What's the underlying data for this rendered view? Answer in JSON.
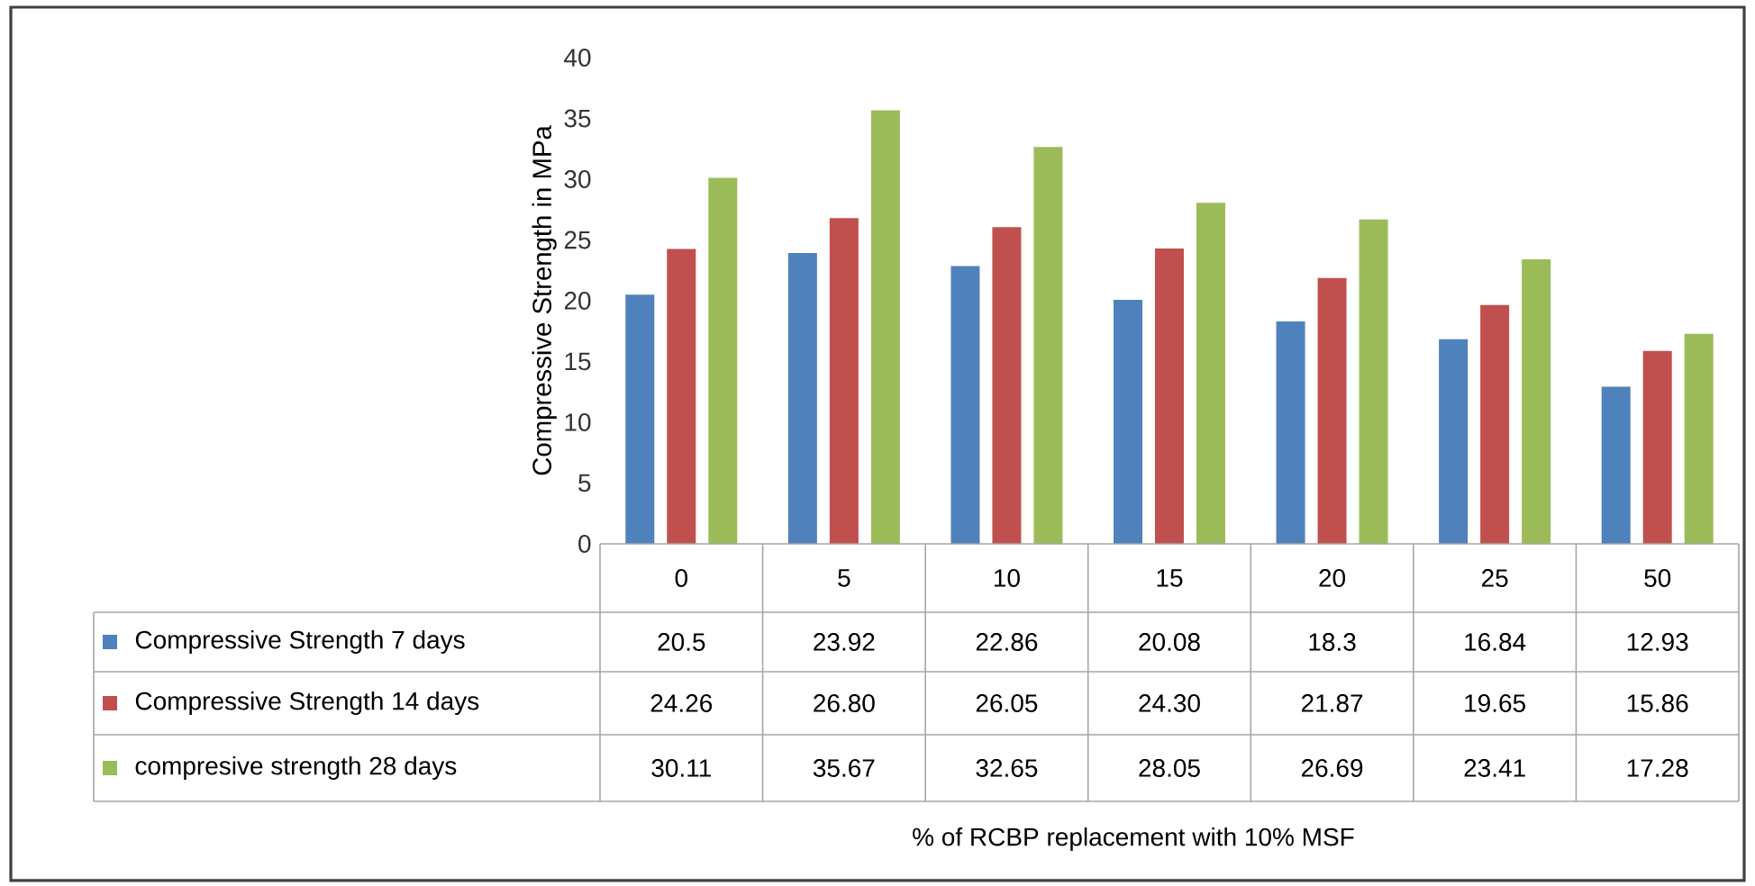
{
  "chart_data": {
    "type": "bar",
    "ylabel": "Compressive Strength in MPa",
    "annotations": [
      "% of RCBP replacement with 10% MSF"
    ],
    "categories": [
      "0",
      "5",
      "10",
      "15",
      "20",
      "25",
      "50"
    ],
    "series": [
      {
        "name": "Compressive Strength 7 days",
        "color": "#4f81bd",
        "values": [
          20.5,
          23.92,
          22.86,
          20.08,
          18.3,
          16.84,
          12.93
        ],
        "value_labels": [
          "20.5",
          "23.92",
          "22.86",
          "20.08",
          "18.3",
          "16.84",
          "12.93"
        ]
      },
      {
        "name": "Compressive Strength 14 days",
        "color": "#c0504d",
        "values": [
          24.26,
          26.8,
          26.05,
          24.3,
          21.87,
          19.65,
          15.86
        ],
        "value_labels": [
          "24.26",
          "26.80",
          "26.05",
          "24.30",
          "21.87",
          "19.65",
          "15.86"
        ]
      },
      {
        "name": "compresive strength 28 days",
        "color": "#9bbb59",
        "values": [
          30.11,
          35.67,
          32.65,
          28.05,
          26.69,
          23.41,
          17.28
        ],
        "value_labels": [
          "30.11",
          "35.67",
          "32.65",
          "28.05",
          "26.69",
          "23.41",
          "17.28"
        ]
      }
    ],
    "ylim": [
      0,
      40
    ],
    "yticks": [
      0,
      5,
      10,
      15,
      20,
      25,
      30,
      35,
      40
    ],
    "legend": "bottom"
  }
}
